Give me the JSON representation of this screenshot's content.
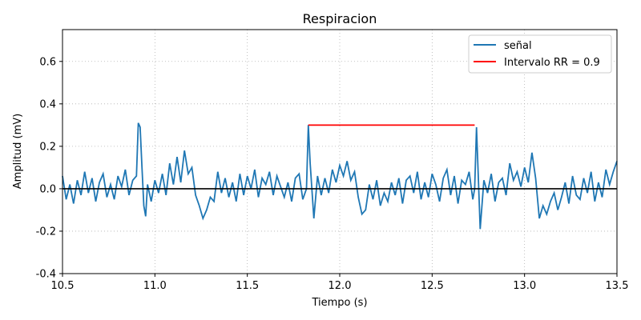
{
  "chart_data": {
    "type": "line",
    "title": "Respiracion",
    "xlabel": "Tiempo (s)",
    "ylabel": "Amplitud (mV)",
    "xlim": [
      10.5,
      13.5
    ],
    "ylim": [
      -0.4,
      0.75
    ],
    "x_ticks": [
      "10.5",
      "11.0",
      "11.5",
      "12.0",
      "12.5",
      "13.0",
      "13.5"
    ],
    "y_ticks": [
      "-0.4",
      "-0.2",
      "0.0",
      "0.2",
      "0.4",
      "0.6"
    ],
    "grid": true,
    "legend_position": "top-right",
    "baseline_y": 0.0,
    "series": [
      {
        "name": "señal",
        "color": "#1f77b4",
        "x": [
          10.5,
          10.52,
          10.54,
          10.56,
          10.58,
          10.6,
          10.62,
          10.64,
          10.66,
          10.68,
          10.7,
          10.72,
          10.74,
          10.76,
          10.78,
          10.8,
          10.82,
          10.84,
          10.86,
          10.88,
          10.9,
          10.91,
          10.92,
          10.93,
          10.94,
          10.95,
          10.96,
          10.98,
          11.0,
          11.02,
          11.04,
          11.06,
          11.08,
          11.1,
          11.12,
          11.14,
          11.16,
          11.18,
          11.2,
          11.22,
          11.24,
          11.26,
          11.28,
          11.3,
          11.32,
          11.34,
          11.36,
          11.38,
          11.4,
          11.42,
          11.44,
          11.46,
          11.48,
          11.5,
          11.52,
          11.54,
          11.56,
          11.58,
          11.6,
          11.62,
          11.64,
          11.66,
          11.68,
          11.7,
          11.72,
          11.74,
          11.76,
          11.78,
          11.8,
          11.82,
          11.83,
          11.84,
          11.86,
          11.88,
          11.9,
          11.92,
          11.94,
          11.96,
          11.98,
          12.0,
          12.02,
          12.04,
          12.06,
          12.08,
          12.1,
          12.12,
          12.14,
          12.16,
          12.18,
          12.2,
          12.22,
          12.24,
          12.26,
          12.28,
          12.3,
          12.32,
          12.34,
          12.36,
          12.38,
          12.4,
          12.42,
          12.44,
          12.46,
          12.48,
          12.5,
          12.52,
          12.54,
          12.56,
          12.58,
          12.6,
          12.62,
          12.64,
          12.66,
          12.68,
          12.7,
          12.72,
          12.73,
          12.74,
          12.76,
          12.78,
          12.8,
          12.82,
          12.84,
          12.86,
          12.88,
          12.9,
          12.92,
          12.94,
          12.96,
          12.98,
          13.0,
          13.02,
          13.04,
          13.06,
          13.08,
          13.1,
          13.12,
          13.14,
          13.16,
          13.18,
          13.2,
          13.22,
          13.24,
          13.26,
          13.28,
          13.3,
          13.32,
          13.34,
          13.36,
          13.38,
          13.4,
          13.42,
          13.44,
          13.46,
          13.48,
          13.5
        ],
        "y": [
          0.06,
          -0.05,
          0.02,
          -0.07,
          0.04,
          -0.03,
          0.08,
          -0.02,
          0.05,
          -0.06,
          0.03,
          0.07,
          -0.04,
          0.02,
          -0.05,
          0.06,
          0.01,
          0.09,
          -0.03,
          0.04,
          0.06,
          0.31,
          0.29,
          0.1,
          -0.08,
          -0.13,
          0.02,
          -0.06,
          0.04,
          -0.02,
          0.07,
          -0.03,
          0.12,
          0.02,
          0.15,
          0.03,
          0.18,
          0.07,
          0.1,
          -0.03,
          -0.08,
          -0.14,
          -0.1,
          -0.04,
          -0.06,
          0.08,
          -0.02,
          0.05,
          -0.04,
          0.03,
          -0.06,
          0.07,
          -0.03,
          0.06,
          0.0,
          0.09,
          -0.04,
          0.05,
          0.02,
          0.08,
          -0.03,
          0.06,
          0.01,
          -0.04,
          0.03,
          -0.06,
          0.05,
          0.07,
          -0.05,
          0.0,
          0.3,
          0.12,
          -0.14,
          0.06,
          -0.03,
          0.05,
          -0.02,
          0.09,
          0.03,
          0.11,
          0.06,
          0.13,
          0.04,
          0.08,
          -0.04,
          -0.12,
          -0.1,
          0.02,
          -0.05,
          0.04,
          -0.08,
          -0.02,
          -0.06,
          0.03,
          -0.03,
          0.05,
          -0.07,
          0.04,
          0.06,
          -0.02,
          0.08,
          -0.05,
          0.03,
          -0.04,
          0.07,
          0.02,
          -0.06,
          0.05,
          0.09,
          -0.03,
          0.06,
          -0.07,
          0.04,
          0.02,
          0.08,
          -0.05,
          0.0,
          0.29,
          -0.19,
          0.04,
          -0.02,
          0.07,
          -0.06,
          0.03,
          0.05,
          -0.03,
          0.12,
          0.04,
          0.08,
          0.01,
          0.1,
          0.03,
          0.17,
          0.05,
          -0.14,
          -0.08,
          -0.12,
          -0.06,
          -0.02,
          -0.1,
          -0.04,
          0.03,
          -0.07,
          0.06,
          -0.03,
          -0.05,
          0.05,
          -0.02,
          0.08,
          -0.06,
          0.03,
          -0.04,
          0.09,
          0.02,
          0.08,
          0.13
        ]
      }
    ],
    "annotations": [
      {
        "name": "Intervalo RR = 0.9",
        "color": "#ff0000",
        "x_start": 11.83,
        "x_end": 12.73,
        "y": 0.3
      }
    ]
  }
}
